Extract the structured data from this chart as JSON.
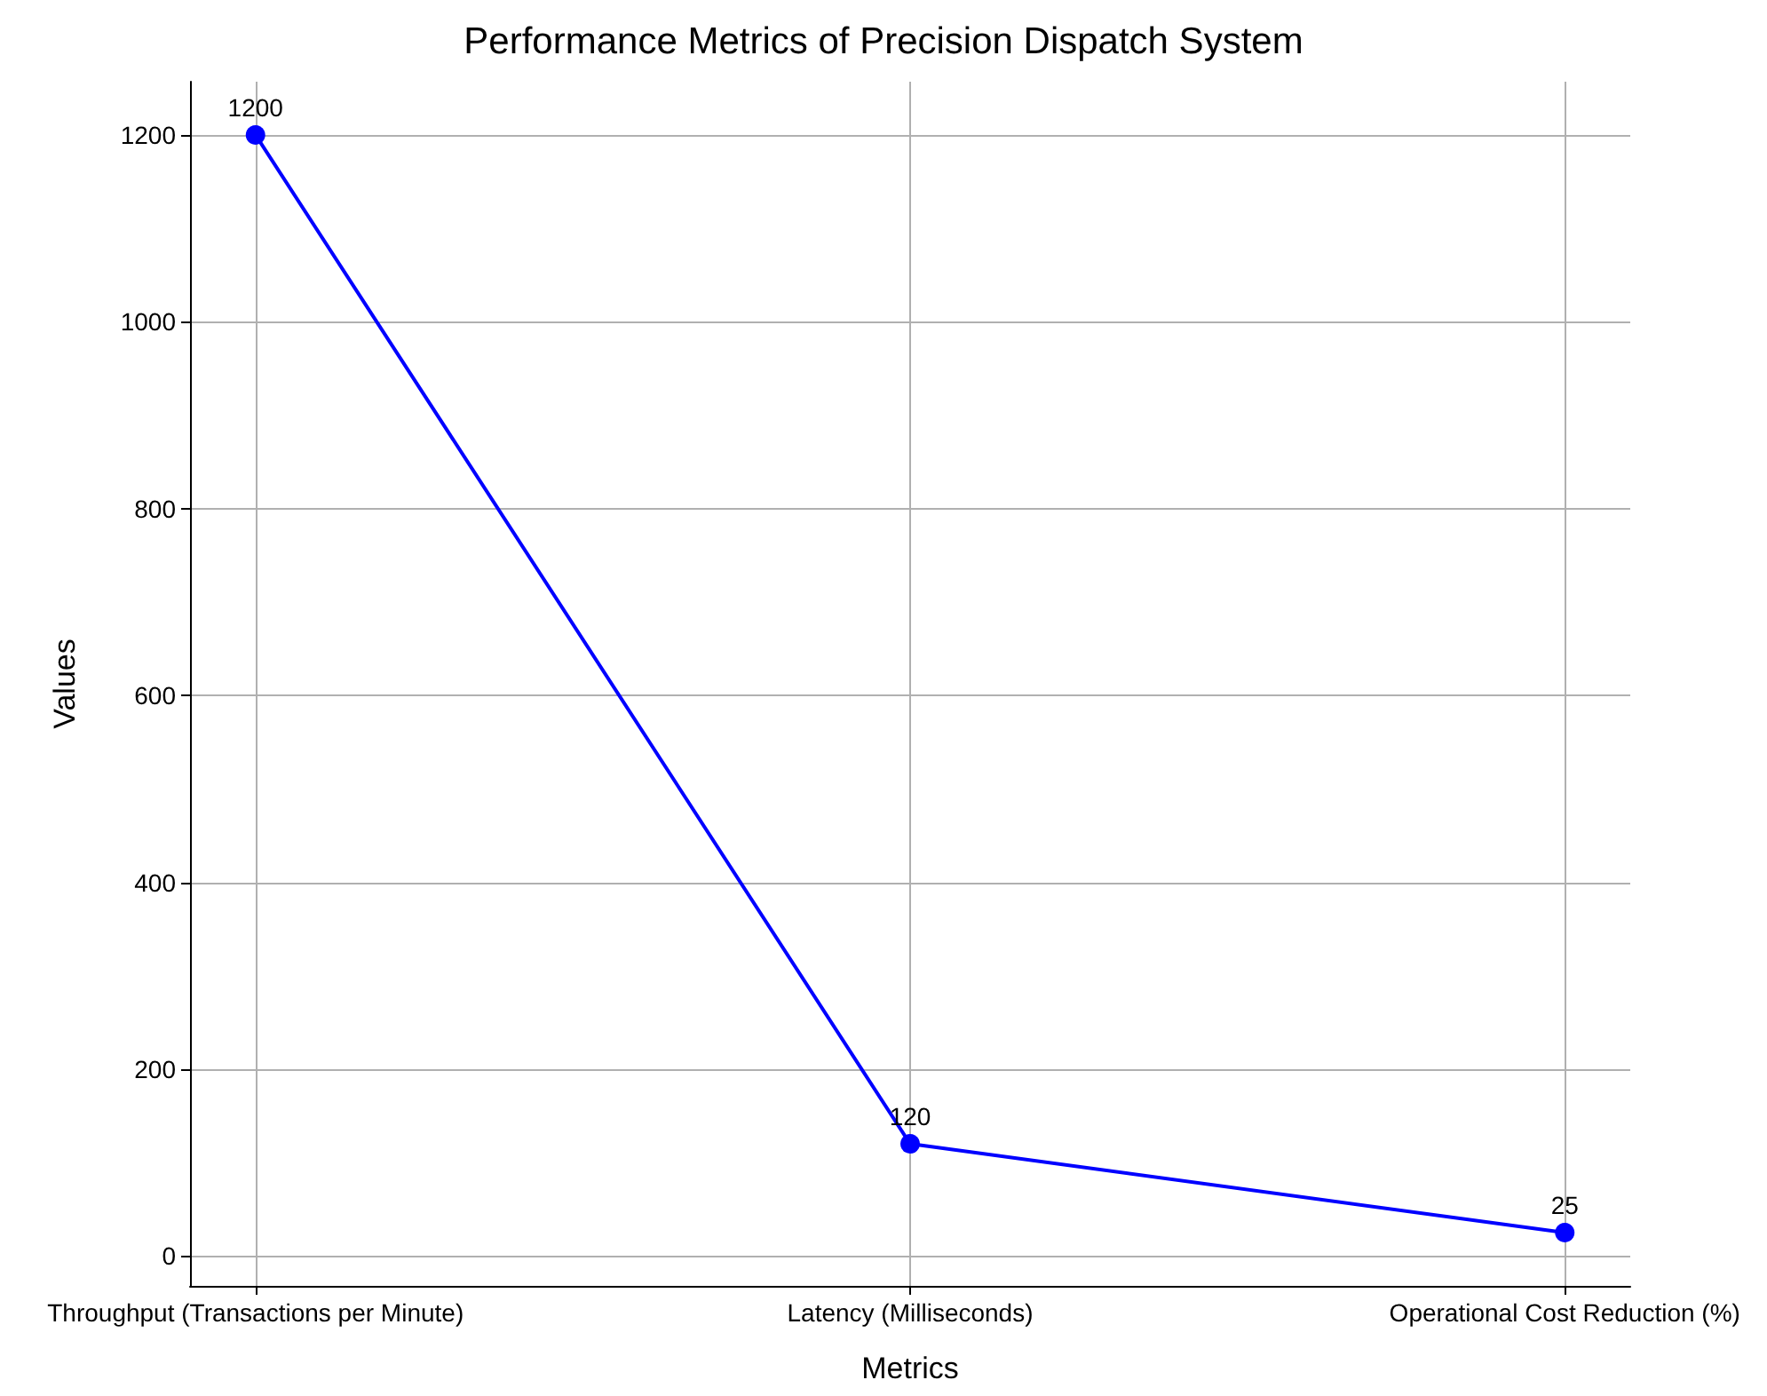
{
  "chart_data": {
    "type": "line",
    "title": "Performance Metrics of Precision Dispatch System",
    "xlabel": "Metrics",
    "ylabel": "Values",
    "categories": [
      "Throughput (Transactions per Minute)",
      "Latency (Milliseconds)",
      "Operational Cost Reduction (%)"
    ],
    "series": [
      {
        "color": "#0000ff",
        "values": [
          1200,
          120,
          25
        ]
      }
    ],
    "ylim": [
      -32,
      1257
    ],
    "yticks": [
      0,
      200,
      400,
      600,
      800,
      1000,
      1200
    ],
    "grid": true,
    "marker": "circle",
    "line_style": "solid",
    "data_labels": true
  }
}
